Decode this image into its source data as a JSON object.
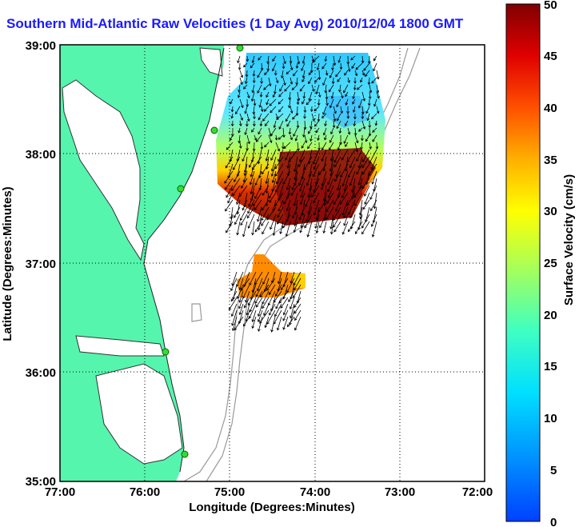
{
  "title": "Southern Mid-Atlantic Raw Velocities (1 Day Avg) 2010/12/04 1800 GMT",
  "x_axis": {
    "label": "Longitude (Degrees:Minutes)",
    "ticks": [
      "77:00",
      "76:00",
      "75:00",
      "74:00",
      "73:00",
      "72:00"
    ]
  },
  "y_axis": {
    "label": "Latitude (Degrees:Minutes)",
    "ticks": [
      "39:00",
      "38:00",
      "37:00",
      "36:00",
      "35:00"
    ]
  },
  "colorbar": {
    "label": "Surface Velocity (cm/s)",
    "ticks": [
      "50",
      "45",
      "40",
      "35",
      "30",
      "25",
      "20",
      "15",
      "10",
      "5",
      "0"
    ],
    "min": 0,
    "max": 50
  },
  "colors": {
    "land": "#55f5ad",
    "water": "#ffffff",
    "title": "#1a1aff",
    "station": "#33dd33",
    "bathymetry": "#999999"
  },
  "icons": [
    "station-marker-icon",
    "velocity-arrow-icon"
  ]
}
